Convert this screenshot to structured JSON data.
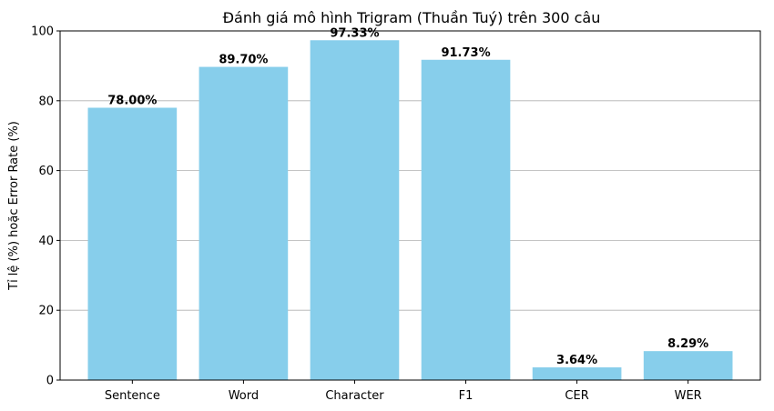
{
  "chart_data": {
    "type": "bar",
    "title": "Đánh giá mô hình Trigram (Thuần Tuý) trên 300 câu",
    "xlabel": "",
    "ylabel": "Tỉ lệ (%) hoặc Error Rate (%)",
    "categories": [
      "Sentence",
      "Word",
      "Character",
      "F1",
      "CER",
      "WER"
    ],
    "values": [
      78.0,
      89.7,
      97.33,
      91.73,
      3.64,
      8.29
    ],
    "data_labels": [
      "78.00%",
      "89.70%",
      "97.33%",
      "91.73%",
      "3.64%",
      "8.29%"
    ],
    "ylim": [
      0,
      100
    ],
    "yticks": [
      0,
      20,
      40,
      60,
      80,
      100
    ],
    "grid": "y-axis only",
    "bar_color": "#87CEEB",
    "grid_color": "#b0b0b0"
  }
}
